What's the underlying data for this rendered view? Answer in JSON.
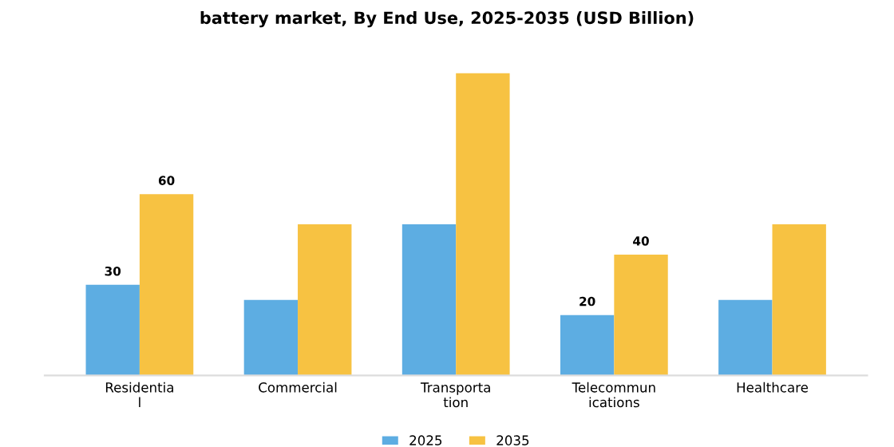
{
  "chart_data": {
    "type": "bar",
    "title": "battery market, By End Use, 2025-2035 (USD Billion)",
    "categories": [
      "Residentia\nl",
      "Commercial",
      "Transporta\ntion",
      "Telecommun\nications",
      "Healthcare"
    ],
    "series": [
      {
        "name": "2025",
        "color": "#5dade2",
        "values": [
          30,
          25,
          50,
          20,
          25
        ],
        "value_labels": [
          "30",
          null,
          null,
          "20",
          null
        ]
      },
      {
        "name": "2035",
        "color": "#f7c242",
        "values": [
          60,
          50,
          100,
          40,
          50
        ],
        "value_labels": [
          "60",
          null,
          null,
          "40",
          null
        ]
      }
    ],
    "tick_labels": "x",
    "grid": false,
    "legend": "bottom"
  }
}
